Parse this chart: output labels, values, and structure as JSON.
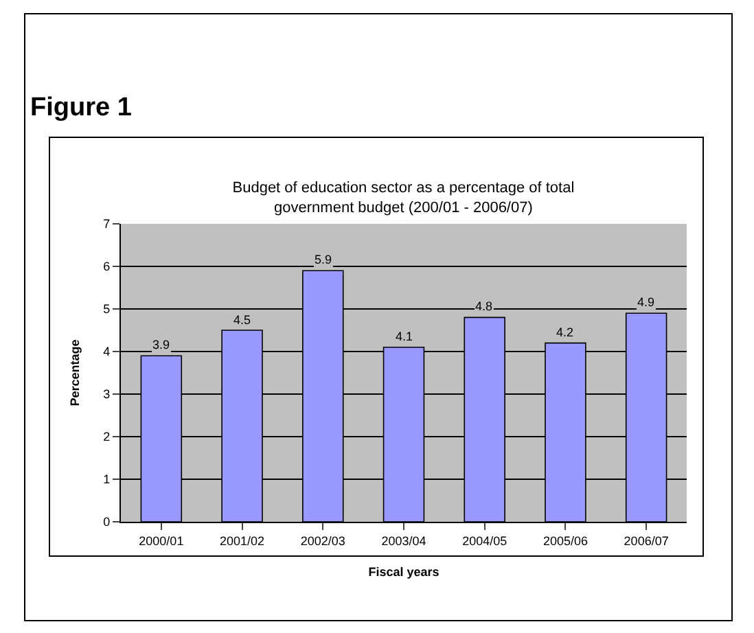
{
  "chart_data": {
    "type": "bar",
    "title": "Budget of education sector as a percentage of total government budget (200/01 - 2006/07)",
    "annotations": [
      "Figure 1"
    ],
    "categories": [
      "2000/01",
      "2001/02",
      "2002/03",
      "2003/04",
      "2004/05",
      "2005/06",
      "2006/07"
    ],
    "values": [
      3.9,
      4.5,
      5.9,
      4.1,
      4.8,
      4.2,
      4.9
    ],
    "color": "#9999ff",
    "xlabel": "Fiscal years",
    "ylabel": "Percentage",
    "ylim": [
      0,
      7
    ],
    "yticks": [
      0,
      1,
      2,
      3,
      4,
      5,
      6,
      7
    ],
    "grid": "y",
    "data_labels": true,
    "legend": false
  }
}
